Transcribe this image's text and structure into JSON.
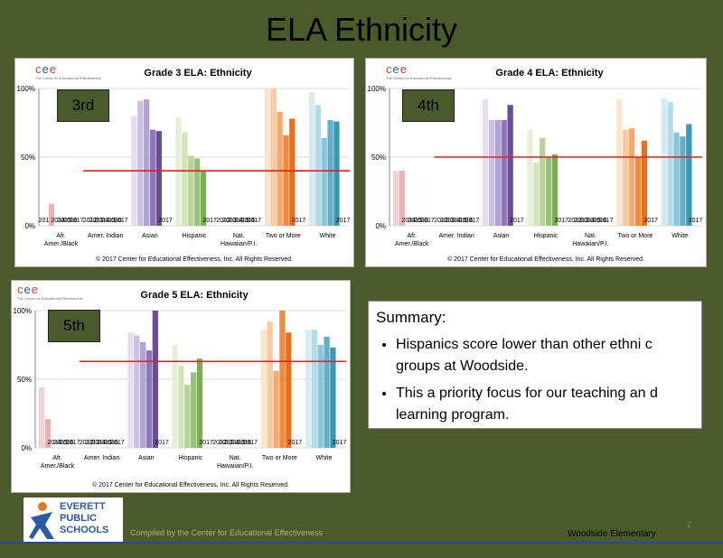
{
  "slide": {
    "title": "ELA   Ethnicity",
    "logo_letters": [
      "c",
      "e",
      "e"
    ],
    "logo_tagline": "The Center for Educational Effectiveness"
  },
  "summary": {
    "heading": "Summary:",
    "bullets": [
      "Hispanics score lower than other ethni c groups at Woodside.",
      "This a priority focus for our teaching an d learning program."
    ]
  },
  "footer": {
    "district_line1": "EVERETT",
    "district_line2": "PUBLIC",
    "district_line3": "SCHOOLS",
    "compiled": "Compiled by the Center for Educational Effectiveness",
    "school": "Woodside Elementary",
    "page_number": "2"
  },
  "chart_data": [
    {
      "type": "bar",
      "badge": "3rd",
      "title": "Grade 3 ELA: Ethnicity",
      "categories": [
        "Afr. Amer./Black",
        "Amer. Indian",
        "Asian",
        "Hispanic",
        "Nat. Hawaiian/P.I.",
        "Two or More",
        "White"
      ],
      "series_years": [
        "2012",
        "2013",
        "2014",
        "2015",
        "2016",
        "2017"
      ],
      "values": [
        [
          null,
          16,
          null,
          null,
          null,
          null
        ],
        [
          null,
          null,
          null,
          null,
          null,
          null
        ],
        [
          80,
          91,
          92,
          70,
          69,
          null
        ],
        [
          79,
          68,
          51,
          49,
          40,
          null
        ],
        [
          null,
          null,
          null,
          null,
          null,
          null
        ],
        [
          100,
          100,
          83,
          66,
          78,
          null
        ],
        [
          97,
          88,
          64,
          77,
          76,
          null
        ]
      ],
      "target_line": 40,
      "ylim": [
        0,
        100
      ],
      "yticks": [
        "0%",
        "50%",
        "100%"
      ],
      "copyright": "© 2017 Center for Educational Effectiveness, Inc. All Rights Reserved."
    },
    {
      "type": "bar",
      "badge": "4th",
      "title": "Grade 4 ELA: Ethnicity",
      "categories": [
        "Afr. Amer./Black",
        "Amer. Indian",
        "Asian",
        "Hispanic",
        "Nat. Hawaiian/P.I.",
        "Two or More",
        "White"
      ],
      "series_years": [
        "2012",
        "2013",
        "2014",
        "2015",
        "2016",
        "2017"
      ],
      "values": [
        [
          40,
          40,
          null,
          null,
          null,
          null
        ],
        [
          null,
          null,
          null,
          null,
          null,
          null
        ],
        [
          92,
          77,
          77,
          77,
          88,
          null
        ],
        [
          70,
          46,
          64,
          50,
          52,
          null
        ],
        [
          null,
          null,
          null,
          null,
          null,
          null
        ],
        [
          92,
          70,
          71,
          50,
          62,
          null
        ],
        [
          93,
          90,
          68,
          65,
          74,
          null
        ]
      ],
      "target_line": 50,
      "ylim": [
        0,
        100
      ],
      "yticks": [
        "0%",
        "50%",
        "100%"
      ],
      "copyright": "© 2017 Center for Educational Effectiveness, Inc. All Rights Reserved."
    },
    {
      "type": "bar",
      "badge": "5th",
      "title": "Grade 5 ELA: Ethnicity",
      "categories": [
        "Afr. Amer./Black",
        "Amer. Indian",
        "Asian",
        "Hispanic",
        "Nat. Hawaiian/P.I.",
        "Two or More",
        "White"
      ],
      "series_years": [
        "2012",
        "2013",
        "2014",
        "2015",
        "2016",
        "2017"
      ],
      "values": [
        [
          44,
          21,
          null,
          null,
          null,
          null
        ],
        [
          null,
          null,
          null,
          null,
          null,
          null
        ],
        [
          84,
          82,
          77,
          71,
          100,
          null
        ],
        [
          75,
          60,
          46,
          55,
          65,
          null
        ],
        [
          null,
          null,
          null,
          null,
          null,
          null
        ],
        [
          86,
          92,
          56,
          100,
          84,
          null
        ],
        [
          86,
          86,
          75,
          81,
          73,
          null
        ]
      ],
      "target_line": 63,
      "ylim": [
        0,
        100
      ],
      "yticks": [
        "0%",
        "50%",
        "100%"
      ],
      "copyright": "© 2017 Center for Educational Effectiveness, Inc. All Rights Reserved."
    }
  ]
}
